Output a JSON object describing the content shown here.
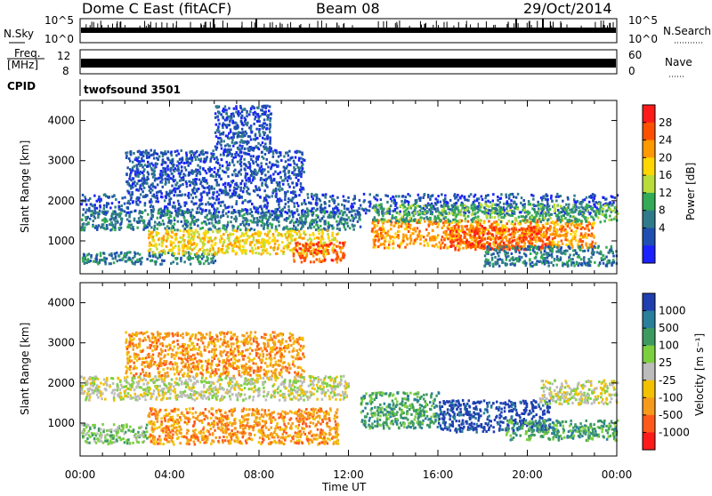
{
  "header": {
    "station": "Dome C East (fitACF)",
    "beam": "Beam 08",
    "date": "29/Oct/2014"
  },
  "left_labels": {
    "nsky": "N.Sky",
    "freq": "Freq.",
    "freq_unit": "[MHz]",
    "cpid": "CPID"
  },
  "right_labels": {
    "nsearch": "N.Search",
    "nave": "Nave"
  },
  "noise_panel": {
    "left_ticks": [
      "10^5",
      "10^0"
    ],
    "right_ticks": [
      "10^5",
      "10^0"
    ]
  },
  "freq_panel": {
    "left_ticks": [
      "12",
      "8"
    ],
    "right_ticks": [
      "60",
      "0"
    ]
  },
  "cpid_value": "twofsound 3501",
  "power_colorbar": {
    "label": "Power [dB]",
    "ticks": [
      "28",
      "24",
      "20",
      "16",
      "12",
      "8",
      "4"
    ],
    "colors": [
      "#ff1a1a",
      "#ff5000",
      "#ff9900",
      "#ffd600",
      "#b9dc3a",
      "#33aa55",
      "#2f7a8a",
      "#1f4fb0",
      "#1a22ff"
    ]
  },
  "velocity_colorbar": {
    "label": "Velocity [m s⁻¹]",
    "ticks": [
      "1000",
      "500",
      "100",
      "25",
      "-25",
      "-100",
      "-500",
      "-1000"
    ],
    "colors": [
      "#1f3fb0",
      "#2a7f9a",
      "#3c9a60",
      "#7cd040",
      "#bcbcbc",
      "#f2c100",
      "#f59a1a",
      "#ff5a1a",
      "#ff1a1a"
    ]
  },
  "chart_data": [
    {
      "type": "heatmap",
      "quantity": "Power",
      "ylabel": "Slant Range [km]",
      "ylim": [
        180,
        4500
      ],
      "yticks": [
        1000,
        2000,
        3000,
        4000
      ],
      "xticks": [
        "00:00",
        "04:00",
        "08:00",
        "12:00",
        "16:00",
        "20:00",
        "00:00"
      ],
      "blobs": [
        {
          "t0": 0.0,
          "t1": 12.5,
          "r0": 1300,
          "r1": 1800,
          "c": 6
        },
        {
          "t0": 0.0,
          "t1": 24.0,
          "r0": 1700,
          "r1": 2200,
          "c": 7
        },
        {
          "t0": 2.0,
          "t1": 10.0,
          "r0": 2200,
          "r1": 3300,
          "c": 7
        },
        {
          "t0": 6.0,
          "t1": 8.5,
          "r0": 3300,
          "r1": 4400,
          "c": 7
        },
        {
          "t0": 0.0,
          "t1": 6.0,
          "r0": 450,
          "r1": 750,
          "c": 6
        },
        {
          "t0": 3.0,
          "t1": 11.5,
          "r0": 700,
          "r1": 1300,
          "c": 3
        },
        {
          "t0": 9.5,
          "t1": 11.8,
          "r0": 500,
          "r1": 1000,
          "c": 1
        },
        {
          "t0": 13.0,
          "t1": 23.0,
          "r0": 850,
          "r1": 1550,
          "c": 2
        },
        {
          "t0": 16.5,
          "t1": 21.0,
          "r0": 800,
          "r1": 1400,
          "c": 1
        },
        {
          "t0": 13.0,
          "t1": 24.0,
          "r0": 1500,
          "r1": 1950,
          "c": 5
        },
        {
          "t0": 18.0,
          "t1": 24.0,
          "r0": 400,
          "r1": 900,
          "c": 6
        }
      ]
    },
    {
      "type": "heatmap",
      "quantity": "Velocity",
      "ylabel": "Slant Range [km]",
      "ylim": [
        180,
        4500
      ],
      "yticks": [
        1000,
        2000,
        3000,
        4000
      ],
      "xticks": [
        "00:00",
        "04:00",
        "08:00",
        "12:00",
        "16:00",
        "20:00",
        "00:00"
      ],
      "xlabel": "Time UT",
      "blobs": [
        {
          "t0": 0.0,
          "t1": 12.0,
          "r0": 1600,
          "r1": 2200,
          "c": 4
        },
        {
          "t0": 2.0,
          "t1": 10.0,
          "r0": 2200,
          "r1": 3300,
          "c": 6
        },
        {
          "t0": 3.0,
          "t1": 11.5,
          "r0": 500,
          "r1": 1400,
          "c": 6
        },
        {
          "t0": 0.0,
          "t1": 3.0,
          "r0": 500,
          "r1": 1000,
          "c": 3
        },
        {
          "t0": 12.5,
          "t1": 16.0,
          "r0": 900,
          "r1": 1800,
          "c": 2
        },
        {
          "t0": 16.0,
          "t1": 21.0,
          "r0": 800,
          "r1": 1600,
          "c": 0
        },
        {
          "t0": 20.5,
          "t1": 24.0,
          "r0": 1500,
          "r1": 2100,
          "c": 4
        },
        {
          "t0": 19.0,
          "t1": 24.0,
          "r0": 600,
          "r1": 1100,
          "c": 2
        }
      ]
    }
  ]
}
